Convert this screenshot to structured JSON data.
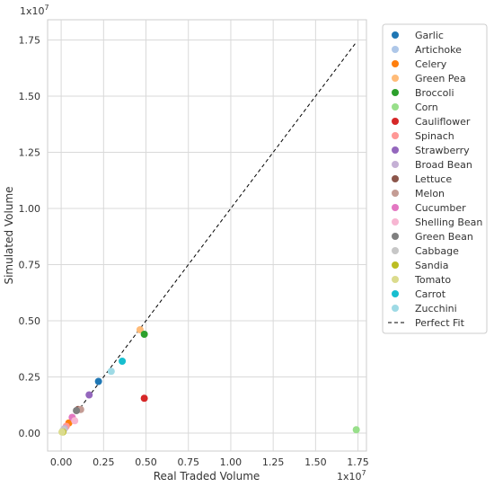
{
  "chart_data": {
    "type": "scatter",
    "xlabel": "Real Traded Volume",
    "ylabel": "Simulated Volume",
    "x_offset_label": "1x10",
    "x_offset_exponent": "7",
    "y_offset_label": "1x10",
    "y_offset_exponent": "7",
    "xlim": [
      -0.08,
      1.8
    ],
    "ylim": [
      -0.08,
      1.84
    ],
    "x_ticks": [
      0.0,
      0.25,
      0.5,
      0.75,
      1.0,
      1.25,
      1.5,
      1.75
    ],
    "x_tick_labels": [
      "0.00",
      "0.25",
      "0.50",
      "0.75",
      "1.00",
      "1.25",
      "1.50",
      "1.75"
    ],
    "y_ticks": [
      0.0,
      0.25,
      0.5,
      0.75,
      1.0,
      1.25,
      1.5,
      1.75
    ],
    "y_tick_labels": [
      "0.00",
      "0.25",
      "0.50",
      "0.75",
      "1.00",
      "1.25",
      "1.50",
      "1.75"
    ],
    "grid": true,
    "legend_position": "outside-right",
    "series": [
      {
        "name": "Garlic",
        "color": "#1f77b4",
        "x": 0.22,
        "y": 0.23
      },
      {
        "name": "Artichoke",
        "color": "#aec7e8",
        "x": 0.01,
        "y": 0.01
      },
      {
        "name": "Celery",
        "color": "#ff7f0e",
        "x": 0.045,
        "y": 0.045
      },
      {
        "name": "Green Pea",
        "color": "#ffbb78",
        "x": 0.465,
        "y": 0.46
      },
      {
        "name": "Broccoli",
        "color": "#2ca02c",
        "x": 0.49,
        "y": 0.44
      },
      {
        "name": "Corn",
        "color": "#98df8a",
        "x": 1.74,
        "y": 0.015
      },
      {
        "name": "Cauliflower",
        "color": "#d62728",
        "x": 0.49,
        "y": 0.155
      },
      {
        "name": "Spinach",
        "color": "#ff9896",
        "x": 0.03,
        "y": 0.03
      },
      {
        "name": "Strawberry",
        "color": "#9467bd",
        "x": 0.165,
        "y": 0.17
      },
      {
        "name": "Broad Bean",
        "color": "#c5b0d5",
        "x": 0.02,
        "y": 0.02
      },
      {
        "name": "Lettuce",
        "color": "#8c564b",
        "x": 0.1,
        "y": 0.105
      },
      {
        "name": "Melon",
        "color": "#c49c94",
        "x": 0.115,
        "y": 0.105
      },
      {
        "name": "Cucumber",
        "color": "#e377c2",
        "x": 0.065,
        "y": 0.07
      },
      {
        "name": "Shelling Bean",
        "color": "#f7b6d2",
        "x": 0.08,
        "y": 0.055
      },
      {
        "name": "Green Bean",
        "color": "#7f7f7f",
        "x": 0.09,
        "y": 0.1
      },
      {
        "name": "Cabbage",
        "color": "#c7c7c7",
        "x": 0.015,
        "y": 0.015
      },
      {
        "name": "Sandia",
        "color": "#bcbd22",
        "x": 0.01,
        "y": 0.005
      },
      {
        "name": "Tomato",
        "color": "#dbdb8d",
        "x": 0.005,
        "y": 0.005
      },
      {
        "name": "Carrot",
        "color": "#17becf",
        "x": 0.36,
        "y": 0.32
      },
      {
        "name": "Zucchini",
        "color": "#9edae5",
        "x": 0.295,
        "y": 0.275
      }
    ],
    "reference_line": {
      "name": "Perfect Fit",
      "color": "#000000",
      "style": "dashed",
      "from": [
        0,
        0
      ],
      "to": [
        1.74,
        1.74
      ]
    }
  }
}
